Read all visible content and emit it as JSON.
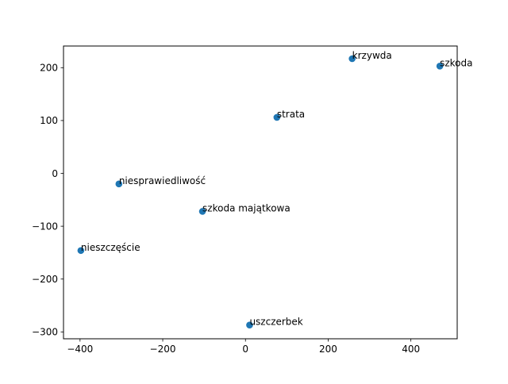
{
  "chart_data": {
    "type": "scatter",
    "title": "",
    "xlabel": "",
    "ylabel": "",
    "xlim": [
      -440,
      512
    ],
    "ylim": [
      -313,
      241
    ],
    "xticks": [
      -400,
      -200,
      0,
      200,
      400
    ],
    "yticks": [
      -300,
      -200,
      -100,
      0,
      100,
      200
    ],
    "grid": false,
    "legend": "none",
    "colors": {
      "marker": "#1f77b4",
      "axis": "#000000",
      "text": "#000000",
      "background": "#ffffff"
    },
    "points": [
      {
        "label": "krzywda",
        "x": 258,
        "y": 217
      },
      {
        "label": "szkoda",
        "x": 470,
        "y": 203
      },
      {
        "label": "strata",
        "x": 76,
        "y": 106
      },
      {
        "label": "niesprawiedliwość",
        "x": -306,
        "y": -20
      },
      {
        "label": "szkoda majątkowa",
        "x": -104,
        "y": -72
      },
      {
        "label": "nieszczęście",
        "x": -398,
        "y": -146
      },
      {
        "label": "uszczerbek",
        "x": 10,
        "y": -287
      }
    ]
  }
}
